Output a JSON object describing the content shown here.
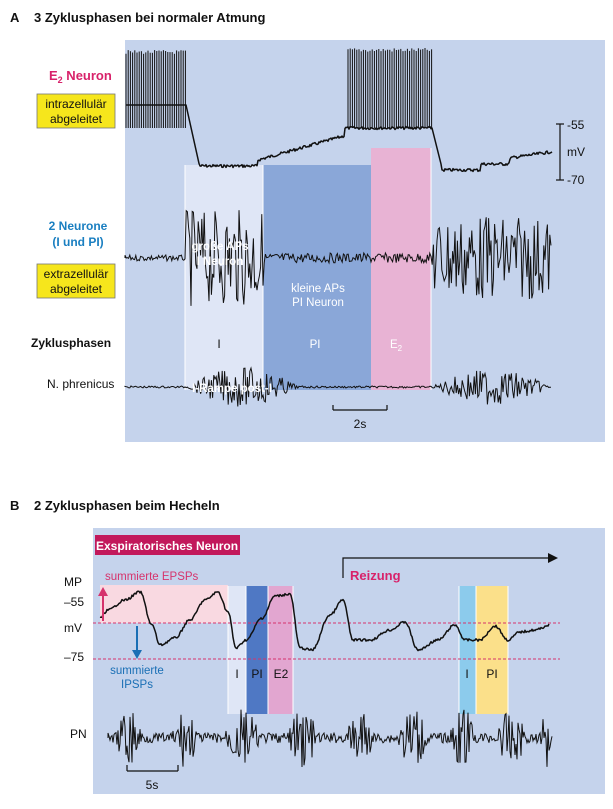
{
  "panel_a": {
    "title_letter": "A",
    "title": "3 Zyklusphasen bei normaler Atmung",
    "e2_label_prefix": "E",
    "e2_label_sub": "2",
    "e2_label_suffix": " Neuron",
    "intra_line1": "intrazellulär",
    "intra_line2": "abgeleitet",
    "two_neurons_line1": "2 Neurone",
    "two_neurons_line2": "(I und PI)",
    "extra_line1": "extrazellulär",
    "extra_line2": "abgeleitet",
    "cycle_label": "Zyklusphasen",
    "phrenicus_label": "N. phrenicus",
    "scale_top": "-55",
    "scale_unit": "mV",
    "scale_bottom": "-70",
    "large_aps_line1": "große APs",
    "large_aps_line2": "I Neuron",
    "small_aps_line1": "kleine APs",
    "small_aps_line2": "PI Neuron",
    "phase_i": "I",
    "phase_pi": "PI",
    "phase_e2_prefix": "E",
    "phase_e2_sub": "2",
    "ramp_label": "I-Rampe post-I",
    "time_scale": "2s",
    "colors": {
      "bg": "#c5d3ec",
      "phase_i": "#dfe6f6",
      "phase_pi": "#8aa7d8",
      "phase_e2": "#e8b3d4",
      "yellow": "#f6e61c"
    }
  },
  "panel_b": {
    "title_letter": "B",
    "title": "2 Zyklusphasen beim Hecheln",
    "neuron_badge": "Exspiratorisches Neuron",
    "mp_label": "MP",
    "val_55": "–55",
    "mv_label": "mV",
    "val_75": "–75",
    "epsp_label": "summierte EPSPs",
    "ipsp_line1": "summierte",
    "ipsp_line2": "IPSPs",
    "stim_label": "Reizung",
    "phase_i": "I",
    "phase_pi": "PI",
    "phase_e2": "E2",
    "phase_i_2": "I",
    "phase_pi_2": "PI",
    "pn_label": "PN",
    "time_scale": "5s",
    "colors": {
      "bg": "#c5d3ec",
      "badge": "#c2185b",
      "epsp_band": "#f9d9e1",
      "phase_i": "#dfe6f6",
      "phase_pi": "#4f78c4",
      "phase_e2": "#e2a6d0",
      "phase_i2": "#8ccbec",
      "phase_pi2": "#fbe08a",
      "threshold": "#d6336c"
    }
  }
}
